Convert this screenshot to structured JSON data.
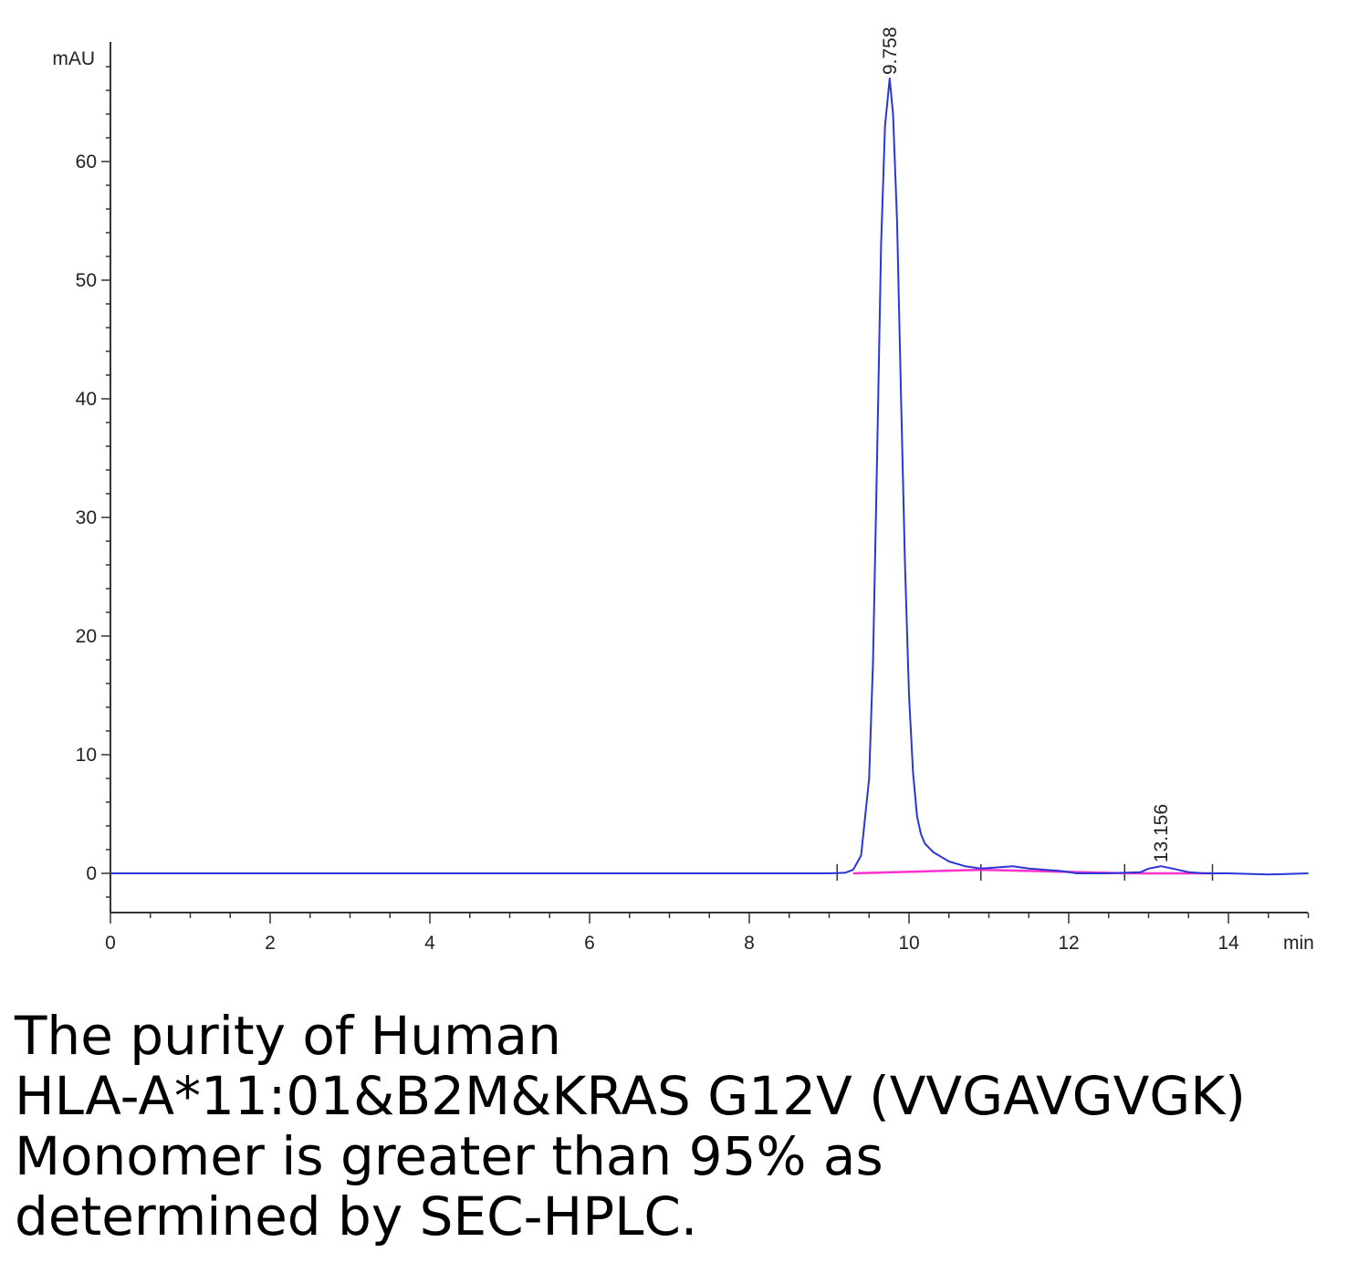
{
  "chart_data": {
    "type": "line",
    "title": "",
    "xlabel": "min",
    "ylabel": "mAU",
    "xlim": [
      0,
      15
    ],
    "ylim": [
      -3,
      70
    ],
    "x_ticks": [
      0,
      2,
      4,
      6,
      8,
      10,
      12,
      14
    ],
    "y_ticks": [
      0,
      10,
      20,
      30,
      40,
      50,
      60
    ],
    "grid": false,
    "series": [
      {
        "color": "#2b35d8",
        "x": [
          0,
          3,
          6,
          9.0,
          9.2,
          9.3,
          9.4,
          9.5,
          9.55,
          9.6,
          9.65,
          9.7,
          9.758,
          9.8,
          9.85,
          9.9,
          9.95,
          10.0,
          10.05,
          10.1,
          10.15,
          10.2,
          10.3,
          10.4,
          10.5,
          10.7,
          10.9,
          11.1,
          11.3,
          11.5,
          11.7,
          11.9,
          12.1,
          12.5,
          12.9,
          13.0,
          13.156,
          13.3,
          13.5,
          13.7,
          14.0,
          14.5,
          15.0
        ],
        "y": [
          0,
          0,
          0,
          0,
          0.05,
          0.3,
          1.5,
          8,
          18,
          35,
          53,
          63,
          67,
          64,
          55,
          40,
          26,
          15,
          8.5,
          4.8,
          3.3,
          2.5,
          1.8,
          1.4,
          1.0,
          0.6,
          0.4,
          0.5,
          0.6,
          0.4,
          0.3,
          0.2,
          0,
          0,
          0.1,
          0.4,
          0.6,
          0.4,
          0.1,
          0,
          0,
          -0.1,
          0
        ]
      },
      {
        "color": "#ff33cc",
        "x": [
          9.3,
          10.9,
          12.75,
          13.8
        ],
        "y": [
          0,
          0.3,
          0,
          0
        ]
      }
    ],
    "peaks": [
      {
        "x": 9.758,
        "label": "9.758"
      },
      {
        "x": 13.156,
        "label": "13.156"
      }
    ],
    "integration_marks": [
      9.1,
      10.9,
      12.7,
      13.8
    ]
  },
  "caption": {
    "lines": [
      "The purity of Human",
      "HLA-A*11:01&B2M&KRAS G12V (VVGAVGVGK)",
      "Monomer is greater than 95% as",
      "determined by SEC-HPLC."
    ]
  }
}
